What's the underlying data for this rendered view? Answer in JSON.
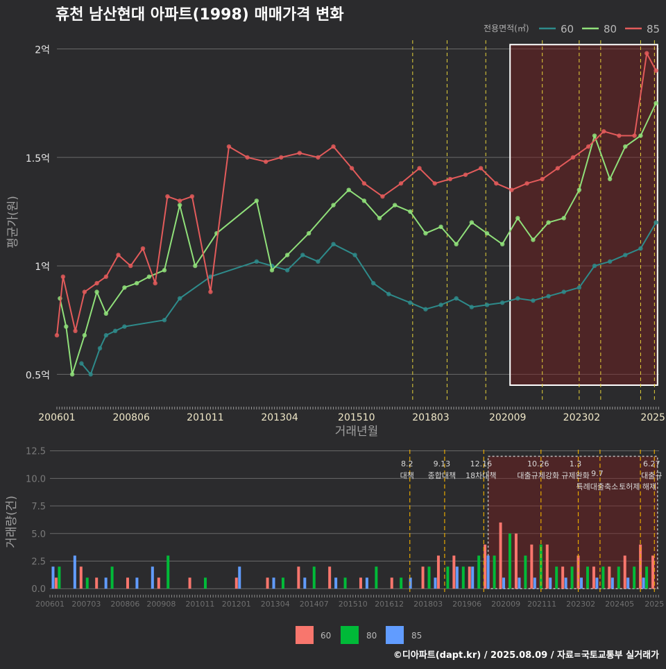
{
  "title": "휴천 남산현대 아파트(1998) 매매가격 변화",
  "footer": "©디아파트(dapt.kr) / 2025.08.09 / 자료=국토교통부 실거래가",
  "colors": {
    "background": "#2b2b2d",
    "s60": "#2e8b8b",
    "s80": "#90e07a",
    "s85": "#e35b5b",
    "bar60": "#f8766d",
    "bar80": "#00ba38",
    "bar85": "#619cff",
    "policy": "#e6d33a",
    "highlight": "#7a1f1f"
  },
  "chart_data": [
    {
      "type": "line",
      "title": "휴천 남산현대 아파트(1998) 매매가격 변화",
      "xlabel": "거래년월",
      "ylabel": "평균가(원)",
      "x_tick_labels": [
        "200601",
        "200806",
        "201011",
        "201304",
        "201510",
        "201803",
        "202009",
        "202302",
        "2025"
      ],
      "y_ticks": [
        {
          "value": 0.5,
          "label": "0.5억"
        },
        {
          "value": 1.0,
          "label": "1억"
        },
        {
          "value": 1.5,
          "label": "1.5억"
        },
        {
          "value": 2.0,
          "label": "2억"
        }
      ],
      "ylim": [
        0.37,
        2.04
      ],
      "xlim": [
        2006.0,
        2025.6
      ],
      "grid": true,
      "legend": {
        "title": "전용면적(㎡)",
        "position": "top-right",
        "entries": [
          "60",
          "80",
          "85"
        ]
      },
      "highlight_range": [
        2020.75,
        2025.55
      ],
      "policy_dates": [
        2017.58,
        2018.7,
        2019.96,
        2021.8,
        2023.0,
        2023.7,
        2025.0,
        2025.45
      ],
      "series": [
        {
          "name": "60",
          "x": [
            2006.8,
            2007.1,
            2007.4,
            2007.6,
            2007.9,
            2008.2,
            2009.5,
            2010.0,
            2011.0,
            2012.5,
            2013.0,
            2013.5,
            2014.0,
            2014.5,
            2015.0,
            2015.7,
            2016.3,
            2016.8,
            2017.5,
            2018.0,
            2018.5,
            2019.0,
            2019.5,
            2020.0,
            2020.5,
            2021.0,
            2021.5,
            2022.0,
            2022.5,
            2023.0,
            2023.5,
            2024.0,
            2024.5,
            2025.0,
            2025.5
          ],
          "values": [
            0.55,
            0.5,
            0.62,
            0.68,
            0.7,
            0.72,
            0.75,
            0.85,
            0.95,
            1.02,
            1.0,
            0.98,
            1.05,
            1.02,
            1.1,
            1.05,
            0.92,
            0.87,
            0.83,
            0.8,
            0.82,
            0.85,
            0.81,
            0.82,
            0.83,
            0.85,
            0.84,
            0.86,
            0.88,
            0.9,
            1.0,
            1.02,
            1.05,
            1.08,
            1.2
          ]
        },
        {
          "name": "80",
          "x": [
            2006.1,
            2006.3,
            2006.5,
            2006.9,
            2007.3,
            2007.6,
            2008.2,
            2008.6,
            2009.0,
            2009.5,
            2010.0,
            2010.5,
            2011.2,
            2012.5,
            2013.0,
            2013.5,
            2014.2,
            2015.0,
            2015.5,
            2016.0,
            2016.5,
            2017.0,
            2017.5,
            2018.0,
            2018.5,
            2019.0,
            2019.5,
            2020.0,
            2020.5,
            2021.0,
            2021.5,
            2022.0,
            2022.5,
            2023.0,
            2023.5,
            2024.0,
            2024.5,
            2025.0,
            2025.5
          ],
          "values": [
            0.85,
            0.72,
            0.5,
            0.68,
            0.88,
            0.78,
            0.9,
            0.92,
            0.95,
            0.98,
            1.28,
            1.0,
            1.15,
            1.3,
            0.98,
            1.05,
            1.15,
            1.28,
            1.35,
            1.3,
            1.22,
            1.28,
            1.25,
            1.15,
            1.18,
            1.1,
            1.2,
            1.15,
            1.1,
            1.22,
            1.12,
            1.2,
            1.22,
            1.35,
            1.6,
            1.4,
            1.55,
            1.6,
            1.75
          ]
        },
        {
          "name": "85",
          "x": [
            2006.0,
            2006.2,
            2006.6,
            2006.9,
            2007.3,
            2007.6,
            2008.0,
            2008.4,
            2008.8,
            2009.2,
            2009.6,
            2010.0,
            2010.4,
            2011.0,
            2011.6,
            2012.2,
            2012.8,
            2013.3,
            2013.9,
            2014.5,
            2015.0,
            2015.6,
            2016.0,
            2016.6,
            2017.2,
            2017.8,
            2018.3,
            2018.8,
            2019.3,
            2019.8,
            2020.3,
            2020.8,
            2021.3,
            2021.8,
            2022.3,
            2022.8,
            2023.3,
            2023.8,
            2024.3,
            2024.8,
            2025.2,
            2025.5
          ],
          "values": [
            0.68,
            0.95,
            0.7,
            0.88,
            0.92,
            0.95,
            1.05,
            1.0,
            1.08,
            0.92,
            1.32,
            1.3,
            1.32,
            0.88,
            1.55,
            1.5,
            1.48,
            1.5,
            1.52,
            1.5,
            1.55,
            1.45,
            1.38,
            1.32,
            1.38,
            1.45,
            1.38,
            1.4,
            1.42,
            1.45,
            1.38,
            1.35,
            1.38,
            1.4,
            1.45,
            1.5,
            1.55,
            1.62,
            1.6,
            1.6,
            1.98,
            1.9
          ]
        }
      ]
    },
    {
      "type": "bar",
      "title": "",
      "xlabel": "",
      "ylabel": "거래량(건)",
      "x_tick_labels": [
        "200601",
        "200703",
        "200806",
        "200908",
        "201011",
        "201201",
        "201304",
        "201407",
        "201510",
        "201612",
        "201803",
        "201906",
        "202009",
        "202111",
        "202302",
        "202405",
        "2025"
      ],
      "y_ticks": [
        {
          "value": 0,
          "label": "0.0"
        },
        {
          "value": 2.5,
          "label": "2.5"
        },
        {
          "value": 5,
          "label": "5.0"
        },
        {
          "value": 7.5,
          "label": "7.5"
        },
        {
          "value": 10,
          "label": "10.0"
        },
        {
          "value": 12.5,
          "label": "12.5"
        }
      ],
      "ylim": [
        -0.3,
        12.6
      ],
      "xlim": [
        2006.0,
        2025.6
      ],
      "legend": {
        "position": "bottom",
        "entries": [
          "60",
          "80",
          "85"
        ]
      },
      "highlight_range": [
        2020.1,
        2025.55
      ],
      "annotations": [
        {
          "date": "8.2",
          "text": "대책",
          "x": 2017.58
        },
        {
          "date": "9.13",
          "text": "종합대책",
          "x": 2018.7
        },
        {
          "date": "12.16",
          "text": "18차대책",
          "x": 2019.96
        },
        {
          "date": "10.26",
          "text": "대출규제강화",
          "x": 2021.8
        },
        {
          "date": "1.3",
          "text": "규제완화",
          "x": 2023.0
        },
        {
          "date": "9.7",
          "text": "특례대출축소",
          "x": 2023.7
        },
        {
          "date": "",
          "text": "토허제 해제",
          "x": 2025.0
        },
        {
          "date": "6.27",
          "text": "대출규",
          "x": 2025.45
        }
      ],
      "series": [
        {
          "name": "60",
          "x": [
            2006.2,
            2007.0,
            2007.5,
            2008.5,
            2009.5,
            2010.5,
            2012.0,
            2013.0,
            2014.0,
            2015.0,
            2016.0,
            2017.0,
            2018.0,
            2018.5,
            2019.0,
            2019.5,
            2020.0,
            2020.5,
            2021.0,
            2021.5,
            2022.0,
            2022.5,
            2023.0,
            2023.5,
            2024.0,
            2024.5,
            2025.0,
            2025.4
          ],
          "values": [
            1,
            2,
            1,
            1,
            1,
            1,
            1,
            1,
            2,
            2,
            1,
            1,
            2,
            3,
            3,
            2,
            4,
            6,
            5,
            4,
            4,
            2,
            3,
            2,
            2,
            3,
            4,
            3
          ]
        },
        {
          "name": "80",
          "x": [
            2006.3,
            2007.2,
            2008.0,
            2009.8,
            2011.0,
            2013.5,
            2014.5,
            2015.5,
            2016.5,
            2017.3,
            2018.2,
            2018.8,
            2019.3,
            2019.8,
            2020.3,
            2020.8,
            2021.3,
            2021.8,
            2022.3,
            2022.8,
            2023.3,
            2023.8,
            2024.3,
            2024.8,
            2025.2
          ],
          "values": [
            2,
            1,
            2,
            3,
            1,
            1,
            2,
            1,
            2,
            1,
            2,
            2,
            2,
            3,
            3,
            5,
            3,
            4,
            2,
            2,
            2,
            2,
            2,
            2,
            2
          ]
        },
        {
          "name": "85",
          "x": [
            2006.1,
            2006.8,
            2007.8,
            2008.8,
            2009.3,
            2012.1,
            2013.2,
            2014.2,
            2015.2,
            2016.2,
            2017.6,
            2018.4,
            2019.1,
            2019.6,
            2020.1,
            2020.6,
            2021.1,
            2021.6,
            2022.1,
            2022.6,
            2023.1,
            2023.6,
            2024.1,
            2024.6,
            2025.1
          ],
          "values": [
            2,
            3,
            1,
            1,
            2,
            2,
            1,
            1,
            1,
            1,
            1,
            1,
            2,
            2,
            3,
            1,
            1,
            1,
            1,
            1,
            1,
            1,
            1,
            1,
            1
          ]
        }
      ]
    }
  ]
}
